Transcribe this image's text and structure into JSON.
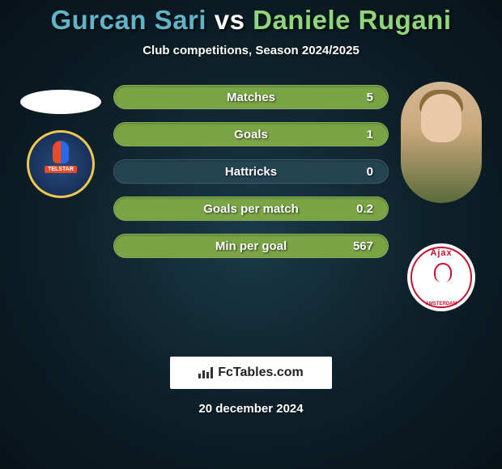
{
  "title": {
    "player1": "Gurcan Sari",
    "vs": "vs",
    "player2": "Daniele Rugani",
    "player1_color": "#5fb4c9",
    "vs_color": "#ffffff",
    "player2_color": "#8fd67a"
  },
  "subtitle": "Club competitions, Season 2024/2025",
  "stats": [
    {
      "label": "Matches",
      "value_right": "5",
      "bar_color": "#7aa545"
    },
    {
      "label": "Goals",
      "value_right": "1",
      "bar_color": "#7aa545"
    },
    {
      "label": "Hattricks",
      "value_right": "0",
      "bar_color": "#244452"
    },
    {
      "label": "Goals per match",
      "value_right": "0.2",
      "bar_color": "#7aa545"
    },
    {
      "label": "Min per goal",
      "value_right": "567",
      "bar_color": "#7aa545"
    }
  ],
  "brand": "FcTables.com",
  "date": "20 december 2024",
  "left_club": "Telstar",
  "right_club": "Ajax",
  "right_club_sub": "AMSTERDAM"
}
